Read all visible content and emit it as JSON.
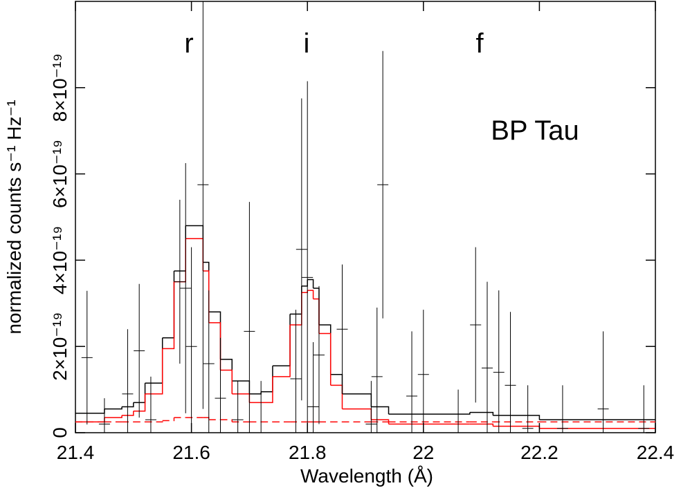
{
  "chart_data": {
    "type": "errorbar",
    "x_label": "Wavelength (Å)",
    "y_label": "normalized counts s⁻¹ Hz⁻¹",
    "annotations": [
      "r",
      "i",
      "f",
      "BP Tau"
    ],
    "xlim": [
      21.4,
      22.4
    ],
    "ylim": [
      0,
      1e-18
    ],
    "xticks": [
      21.4,
      21.6,
      21.8,
      22,
      22.2,
      22.4
    ],
    "yticks": [
      0,
      {
        "value": 2e-19,
        "label": "2×10⁻¹⁹"
      },
      {
        "value": 4e-19,
        "label": "4×10⁻¹⁹"
      },
      {
        "value": 6e-19,
        "label": "6×10⁻¹⁹"
      },
      {
        "value": 8e-19,
        "label": "8×10⁻¹⁹"
      }
    ],
    "color": "#000000",
    "x": [
      21.42,
      21.45,
      21.49,
      21.51,
      21.53,
      21.58,
      21.59,
      21.6,
      21.62,
      21.63,
      21.65,
      21.68,
      21.7,
      21.72,
      21.78,
      21.79,
      21.8,
      21.81,
      21.82,
      21.86,
      21.91,
      21.92,
      21.93,
      21.98,
      22,
      22.06,
      22.09,
      22.11,
      22.13,
      22.15,
      22.18,
      22.24,
      22.31,
      22.38
    ],
    "values": [
      1.74e-19,
      2e-20,
      9e-20,
      1.9e-19,
      3e-20,
      3.5e-19,
      3.35e-19,
      2e-19,
      5.75e-19,
      1.6e-19,
      8e-20,
      3e-20,
      2.35e-19,
      0,
      1.25e-19,
      4.25e-19,
      3.6e-19,
      6e-20,
      1.8e-19,
      2.4e-19,
      2e-20,
      1.3e-19,
      5.75e-19,
      8.5e-20,
      1.35e-19,
      0,
      2.5e-19,
      1.5e-19,
      1.4e-19,
      1.1e-19,
      1e-20,
      1e-20,
      5.5e-20,
      1e-20
    ],
    "errors": [
      1.55e-19,
      6e-20,
      1.5e-19,
      1.55e-19,
      1e-19,
      1.9e-19,
      2.9e-19,
      2.3e-19,
      5.2e-19,
      1.7e-19,
      1.4e-19,
      9e-20,
      3e-19,
      1.2e-19,
      1.6e-19,
      3.5e-19,
      4.55e-19,
      1.5e-19,
      1.6e-19,
      1.5e-19,
      1e-19,
      1.6e-19,
      3.1e-19,
      1.5e-19,
      1.5e-19,
      1e-19,
      1.8e-19,
      2e-19,
      1.9e-19,
      1.7e-19,
      1e-19,
      1e-19,
      1.8e-19,
      1e-19
    ],
    "model": {
      "type": "step",
      "bins": [
        21.4,
        21.45,
        21.48,
        21.5,
        21.52,
        21.55,
        21.57,
        21.59,
        21.62,
        21.63,
        21.65,
        21.67,
        21.7,
        21.72,
        21.74,
        21.77,
        21.79,
        21.8,
        21.81,
        21.82,
        21.84,
        21.86,
        21.91,
        21.94,
        22.08,
        22.12,
        22.2,
        22.4
      ],
      "series": [
        {
          "color": "#000000",
          "dashed": false,
          "values": [
            4.5e-20,
            5.5e-20,
            6e-20,
            7e-20,
            1.15e-19,
            2.2e-19,
            3.75e-19,
            4.8e-19,
            3.95e-19,
            2.8e-19,
            1.7e-19,
            1.2e-19,
            9e-20,
            9.5e-20,
            1.55e-19,
            2.75e-19,
            3.4e-19,
            3.55e-19,
            3.35e-19,
            2.5e-19,
            1.35e-19,
            9e-20,
            6e-20,
            4.3e-20,
            4.7e-20,
            4e-20,
            3e-20
          ]
        },
        {
          "color": "#ff0000",
          "dashed": false,
          "values": [
            2.5e-20,
            3.5e-20,
            4e-20,
            5e-20,
            9e-20,
            1.95e-19,
            3.5e-19,
            4.5e-19,
            3.75e-19,
            2.55e-19,
            1.45e-19,
            9e-20,
            7e-20,
            7e-20,
            1.3e-19,
            2.5e-19,
            3.25e-19,
            3.3e-19,
            3.1e-19,
            2.3e-19,
            1.1e-19,
            5.5e-20,
            3e-20,
            2e-20,
            2e-20,
            1.5e-20,
            1e-20
          ]
        },
        {
          "color": "#ff0000",
          "dashed": true,
          "values": [
            2.5e-20,
            2.5e-20,
            2.5e-20,
            2.5e-20,
            2.5e-20,
            2.8e-20,
            3.5e-20,
            3.5e-20,
            3.5e-20,
            3e-20,
            3e-20,
            2.5e-20,
            2.5e-20,
            2.5e-20,
            2.5e-20,
            2.5e-20,
            2.5e-20,
            2.5e-20,
            2.5e-20,
            2.5e-20,
            2.5e-20,
            2.5e-20,
            2.5e-20,
            2.5e-20,
            2.5e-20,
            2.5e-20,
            2.5e-20
          ]
        }
      ]
    }
  }
}
